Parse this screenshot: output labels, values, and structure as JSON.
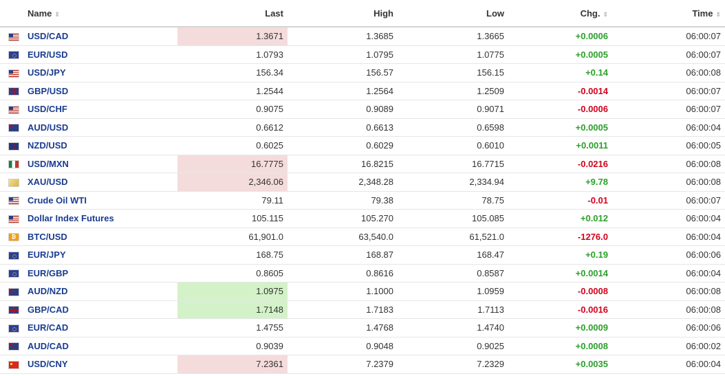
{
  "columns": {
    "name": "Name",
    "last": "Last",
    "high": "High",
    "low": "Low",
    "chg": "Chg.",
    "time": "Time"
  },
  "sort_icon": "⇕",
  "rows": [
    {
      "flag": "US",
      "name": "USD/CAD",
      "last": "1.3671",
      "high": "1.3685",
      "low": "1.3665",
      "chg": "+0.0006",
      "time": "06:00:07",
      "dir": "pos",
      "hl": "red"
    },
    {
      "flag": "EU",
      "name": "EUR/USD",
      "last": "1.0793",
      "high": "1.0795",
      "low": "1.0775",
      "chg": "+0.0005",
      "time": "06:00:07",
      "dir": "pos",
      "hl": ""
    },
    {
      "flag": "US",
      "name": "USD/JPY",
      "last": "156.34",
      "high": "156.57",
      "low": "156.15",
      "chg": "+0.14",
      "time": "06:00:08",
      "dir": "pos",
      "hl": ""
    },
    {
      "flag": "GB",
      "name": "GBP/USD",
      "last": "1.2544",
      "high": "1.2564",
      "low": "1.2509",
      "chg": "-0.0014",
      "time": "06:00:07",
      "dir": "neg",
      "hl": ""
    },
    {
      "flag": "US",
      "name": "USD/CHF",
      "last": "0.9075",
      "high": "0.9089",
      "low": "0.9071",
      "chg": "-0.0006",
      "time": "06:00:07",
      "dir": "neg",
      "hl": ""
    },
    {
      "flag": "AU",
      "name": "AUD/USD",
      "last": "0.6612",
      "high": "0.6613",
      "low": "0.6598",
      "chg": "+0.0005",
      "time": "06:00:04",
      "dir": "pos",
      "hl": ""
    },
    {
      "flag": "NZ",
      "name": "NZD/USD",
      "last": "0.6025",
      "high": "0.6029",
      "low": "0.6010",
      "chg": "+0.0011",
      "time": "06:00:05",
      "dir": "pos",
      "hl": ""
    },
    {
      "flag": "MX",
      "name": "USD/MXN",
      "last": "16.7775",
      "high": "16.8215",
      "low": "16.7715",
      "chg": "-0.0216",
      "time": "06:00:08",
      "dir": "neg",
      "hl": "red"
    },
    {
      "flag": "XAU",
      "name": "XAU/USD",
      "last": "2,346.06",
      "high": "2,348.28",
      "low": "2,334.94",
      "chg": "+9.78",
      "time": "06:00:08",
      "dir": "pos",
      "hl": "red"
    },
    {
      "flag": "US",
      "name": "Crude Oil WTI",
      "last": "79.11",
      "high": "79.38",
      "low": "78.75",
      "chg": "-0.01",
      "time": "06:00:07",
      "dir": "neg",
      "hl": ""
    },
    {
      "flag": "US",
      "name": "Dollar Index Futures",
      "last": "105.115",
      "high": "105.270",
      "low": "105.085",
      "chg": "+0.012",
      "time": "06:00:04",
      "dir": "pos",
      "hl": ""
    },
    {
      "flag": "BTC",
      "name": "BTC/USD",
      "last": "61,901.0",
      "high": "63,540.0",
      "low": "61,521.0",
      "chg": "-1276.0",
      "time": "06:00:04",
      "dir": "neg",
      "hl": ""
    },
    {
      "flag": "EU",
      "name": "EUR/JPY",
      "last": "168.75",
      "high": "168.87",
      "low": "168.47",
      "chg": "+0.19",
      "time": "06:00:06",
      "dir": "pos",
      "hl": ""
    },
    {
      "flag": "EU",
      "name": "EUR/GBP",
      "last": "0.8605",
      "high": "0.8616",
      "low": "0.8587",
      "chg": "+0.0014",
      "time": "06:00:04",
      "dir": "pos",
      "hl": ""
    },
    {
      "flag": "AU",
      "name": "AUD/NZD",
      "last": "1.0975",
      "high": "1.1000",
      "low": "1.0959",
      "chg": "-0.0008",
      "time": "06:00:08",
      "dir": "neg",
      "hl": "green"
    },
    {
      "flag": "GB",
      "name": "GBP/CAD",
      "last": "1.7148",
      "high": "1.7183",
      "low": "1.7113",
      "chg": "-0.0016",
      "time": "06:00:08",
      "dir": "neg",
      "hl": "green"
    },
    {
      "flag": "EU",
      "name": "EUR/CAD",
      "last": "1.4755",
      "high": "1.4768",
      "low": "1.4740",
      "chg": "+0.0009",
      "time": "06:00:06",
      "dir": "pos",
      "hl": ""
    },
    {
      "flag": "AU",
      "name": "AUD/CAD",
      "last": "0.9039",
      "high": "0.9048",
      "low": "0.9025",
      "chg": "+0.0008",
      "time": "06:00:02",
      "dir": "pos",
      "hl": ""
    },
    {
      "flag": "CN",
      "name": "USD/CNY",
      "last": "7.2361",
      "high": "7.2379",
      "low": "7.2329",
      "chg": "+0.0035",
      "time": "06:00:04",
      "dir": "pos",
      "hl": "red"
    }
  ],
  "colors": {
    "positive": "#2aa02a",
    "negative": "#d0021b",
    "link": "#1a3c8f",
    "highlight_down": "#f5dcdc",
    "highlight_up": "#d3f2c8"
  }
}
